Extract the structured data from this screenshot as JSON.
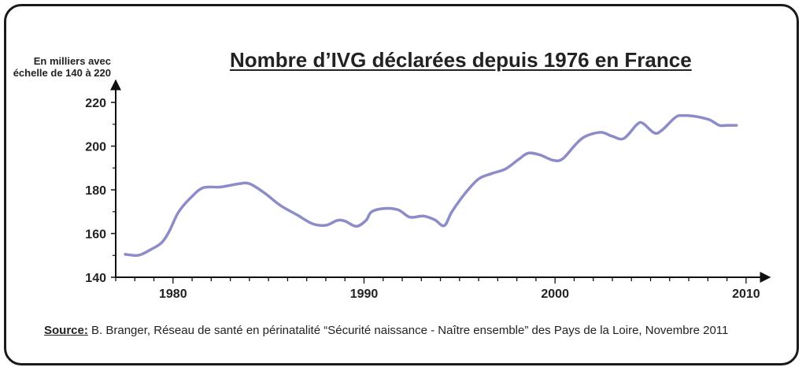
{
  "chart_data": {
    "type": "line",
    "title": "Nombre d’IVG déclarées depuis 1976 en France",
    "ylabel": "En milliers avec échelle de 140 à 220",
    "xlabel": "",
    "xlim": [
      1977,
      2010.5
    ],
    "ylim": [
      140,
      222
    ],
    "xticks_labeled": [
      1980,
      1990,
      2000,
      2010
    ],
    "xticks_minor_step": 1,
    "yticks": [
      140,
      160,
      180,
      200,
      220
    ],
    "grid": false,
    "line_color": "#8c8cc8",
    "series": [
      {
        "x": [
          1977.5,
          1978,
          1978.3,
          1978.8,
          1979.4,
          1979.8,
          1980.3,
          1981,
          1981.6,
          1982.5,
          1983.4,
          1984,
          1984.8,
          1985.6,
          1986.5,
          1987.3,
          1988,
          1988.6,
          1989,
          1989.6,
          1990.1,
          1990.4,
          1991.1,
          1991.8,
          1992.4,
          1993.1,
          1993.7,
          1994.2,
          1994.6,
          1995.3,
          1996,
          1996.7,
          1997.4,
          1998.1,
          1998.6,
          1999.2,
          1999.9,
          2000.4,
          2001.1,
          2001.6,
          2002.4,
          2003,
          2003.6,
          2004.3,
          2004.6,
          2005.2,
          2005.6,
          2006.3,
          2006.7,
          2007.4,
          2008.1,
          2008.6,
          2009,
          2009.5
        ],
        "y": [
          150.5,
          150,
          150.3,
          152.5,
          155.8,
          161,
          170,
          177,
          181,
          181.3,
          182.7,
          182.8,
          178.5,
          173,
          168.5,
          164.5,
          163.8,
          166,
          165.7,
          163.3,
          166,
          170,
          171.5,
          170.8,
          167.5,
          168,
          166.3,
          163.6,
          170,
          178.5,
          185,
          187.5,
          189.5,
          194,
          196.8,
          196,
          193.5,
          194.2,
          201,
          204.5,
          206.3,
          204.5,
          203.5,
          210,
          210.4,
          206,
          207.3,
          213.2,
          214,
          213.5,
          212,
          209.5,
          209.5,
          209.5
        ]
      }
    ]
  },
  "source": {
    "label": "Source:",
    "text": " B. Branger, Réseau de santé en périnatalité “Sécurité naissance - Naître ensemble” des Pays de la Loire, Novembre 2011"
  }
}
